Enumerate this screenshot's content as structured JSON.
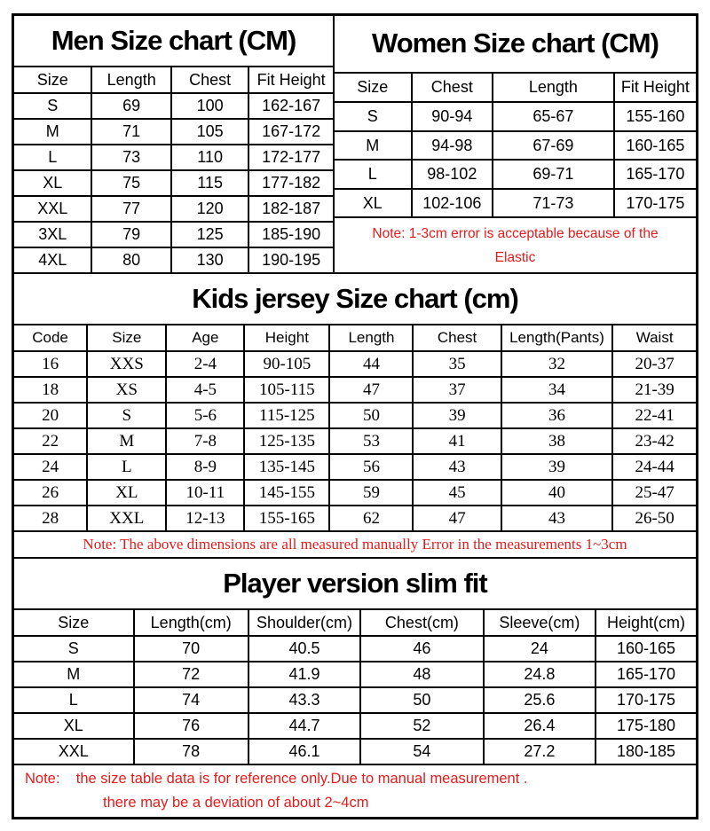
{
  "colors": {
    "note_red": "#e31b1b",
    "text": "#000000",
    "border": "#000000",
    "background": "#ffffff"
  },
  "men": {
    "title": "Men Size chart (CM)",
    "headers": [
      "Size",
      "Length",
      "Chest",
      "Fit Height"
    ],
    "rows": [
      [
        "S",
        "69",
        "100",
        "162-167"
      ],
      [
        "M",
        "71",
        "105",
        "167-172"
      ],
      [
        "L",
        "73",
        "110",
        "172-177"
      ],
      [
        "XL",
        "75",
        "115",
        "177-182"
      ],
      [
        "XXL",
        "77",
        "120",
        "182-187"
      ],
      [
        "3XL",
        "79",
        "125",
        "185-190"
      ],
      [
        "4XL",
        "80",
        "130",
        "190-195"
      ]
    ]
  },
  "women": {
    "title": "Women Size chart (CM)",
    "headers": [
      "Size",
      "Chest",
      "Length",
      "Fit Height"
    ],
    "rows": [
      [
        "S",
        "90-94",
        "65-67",
        "155-160"
      ],
      [
        "M",
        "94-98",
        "67-69",
        "160-165"
      ],
      [
        "L",
        "98-102",
        "69-71",
        "165-170"
      ],
      [
        "XL",
        "102-106",
        "71-73",
        "170-175"
      ]
    ],
    "note_lines": [
      "Note: 1-3cm error is acceptable because of the",
      "Elastic"
    ]
  },
  "kids": {
    "title": "Kids jersey Size chart (cm)",
    "headers": [
      "Code",
      "Size",
      "Age",
      "Height",
      "Length",
      "Chest",
      "Length(Pants)",
      "Waist"
    ],
    "rows": [
      [
        "16",
        "XXS",
        "2-4",
        "90-105",
        "44",
        "35",
        "32",
        "20-37"
      ],
      [
        "18",
        "XS",
        "4-5",
        "105-115",
        "47",
        "37",
        "34",
        "21-39"
      ],
      [
        "20",
        "S",
        "5-6",
        "115-125",
        "50",
        "39",
        "36",
        "22-41"
      ],
      [
        "22",
        "M",
        "7-8",
        "125-135",
        "53",
        "41",
        "38",
        "23-42"
      ],
      [
        "24",
        "L",
        "8-9",
        "135-145",
        "56",
        "43",
        "39",
        "24-44"
      ],
      [
        "26",
        "XL",
        "10-11",
        "145-155",
        "59",
        "45",
        "40",
        "25-47"
      ],
      [
        "28",
        "XXL",
        "12-13",
        "155-165",
        "62",
        "47",
        "43",
        "26-50"
      ]
    ],
    "note": "Note: The above dimensions are all measured manually Error in the measurements 1~3cm"
  },
  "player": {
    "title": "Player version slim fit",
    "headers": [
      "Size",
      "Length(cm)",
      "Shoulder(cm)",
      "Chest(cm)",
      "Sleeve(cm)",
      "Height(cm)"
    ],
    "rows": [
      [
        "S",
        "70",
        "40.5",
        "46",
        "24",
        "160-165"
      ],
      [
        "M",
        "72",
        "41.9",
        "48",
        "24.8",
        "165-170"
      ],
      [
        "L",
        "74",
        "43.3",
        "50",
        "25.6",
        "170-175"
      ],
      [
        "XL",
        "76",
        "44.7",
        "52",
        "26.4",
        "175-180"
      ],
      [
        "XXL",
        "78",
        "46.1",
        "54",
        "27.2",
        "180-185"
      ]
    ],
    "note_lines": [
      "Note:    the size table data is for reference only.Due to manual measurement .",
      "there may be a deviation of about 2~4cm"
    ]
  }
}
